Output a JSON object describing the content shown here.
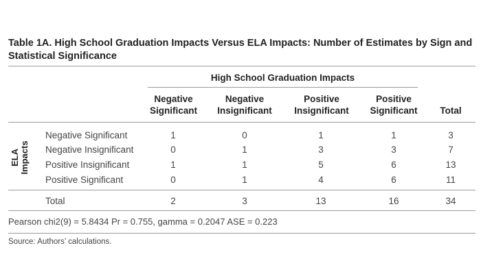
{
  "title": "Table 1A. High School Graduation Impacts Versus ELA Impacts: Number of Estimates by Sign and Statistical Significance",
  "column_group": "High School Graduation Impacts",
  "columns": [
    {
      "line1": "Negative",
      "line2": "Significant"
    },
    {
      "line1": "Negative",
      "line2": "Insignificant"
    },
    {
      "line1": "Positive",
      "line2": "Insignificant"
    },
    {
      "line1": "Positive",
      "line2": "Significant"
    },
    {
      "line1": "Total",
      "line2": ""
    }
  ],
  "row_group": {
    "line1": "ELA",
    "line2": "Impacts"
  },
  "rows": [
    {
      "label": "Negative Significant",
      "values": [
        "1",
        "0",
        "1",
        "1",
        "3"
      ]
    },
    {
      "label": "Negative Insignificant",
      "values": [
        "0",
        "1",
        "3",
        "3",
        "7"
      ]
    },
    {
      "label": "Positive Insignificant",
      "values": [
        "1",
        "1",
        "5",
        "6",
        "13"
      ]
    },
    {
      "label": "Positive Significant",
      "values": [
        "0",
        "1",
        "4",
        "6",
        "11"
      ]
    }
  ],
  "total_row": {
    "label": "Total",
    "values": [
      "2",
      "3",
      "13",
      "16",
      "34"
    ]
  },
  "stats_note": "Pearson chi2(9) = 5.8434 Pr = 0.755, gamma = 0.2047 ASE = 0.223",
  "source": "Source: Authors’ calculations."
}
